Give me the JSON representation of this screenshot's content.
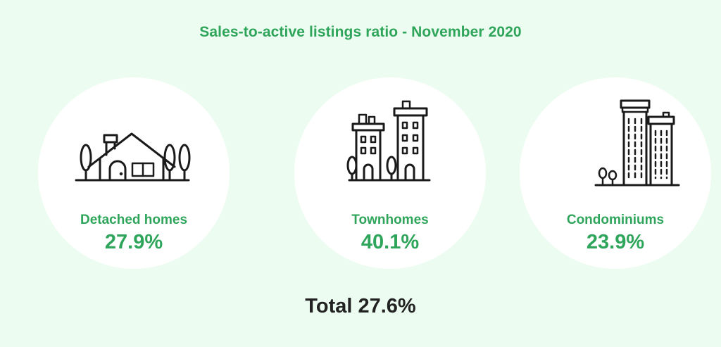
{
  "title": "Sales-to-active listings ratio - November 2020",
  "cards": [
    {
      "label": "Detached homes",
      "value": "27.9%",
      "icon": "house-icon"
    },
    {
      "label": "Townhomes",
      "value": "40.1%",
      "icon": "townhouse-buildings-icon"
    },
    {
      "label": "Condominiums",
      "value": "23.9%",
      "icon": "condo-towers-icon"
    }
  ],
  "total": "Total 27.6%",
  "colors": {
    "background": "#edfcf1",
    "accent": "#2ea55a",
    "text_dark": "#222222",
    "card": "#ffffff"
  }
}
